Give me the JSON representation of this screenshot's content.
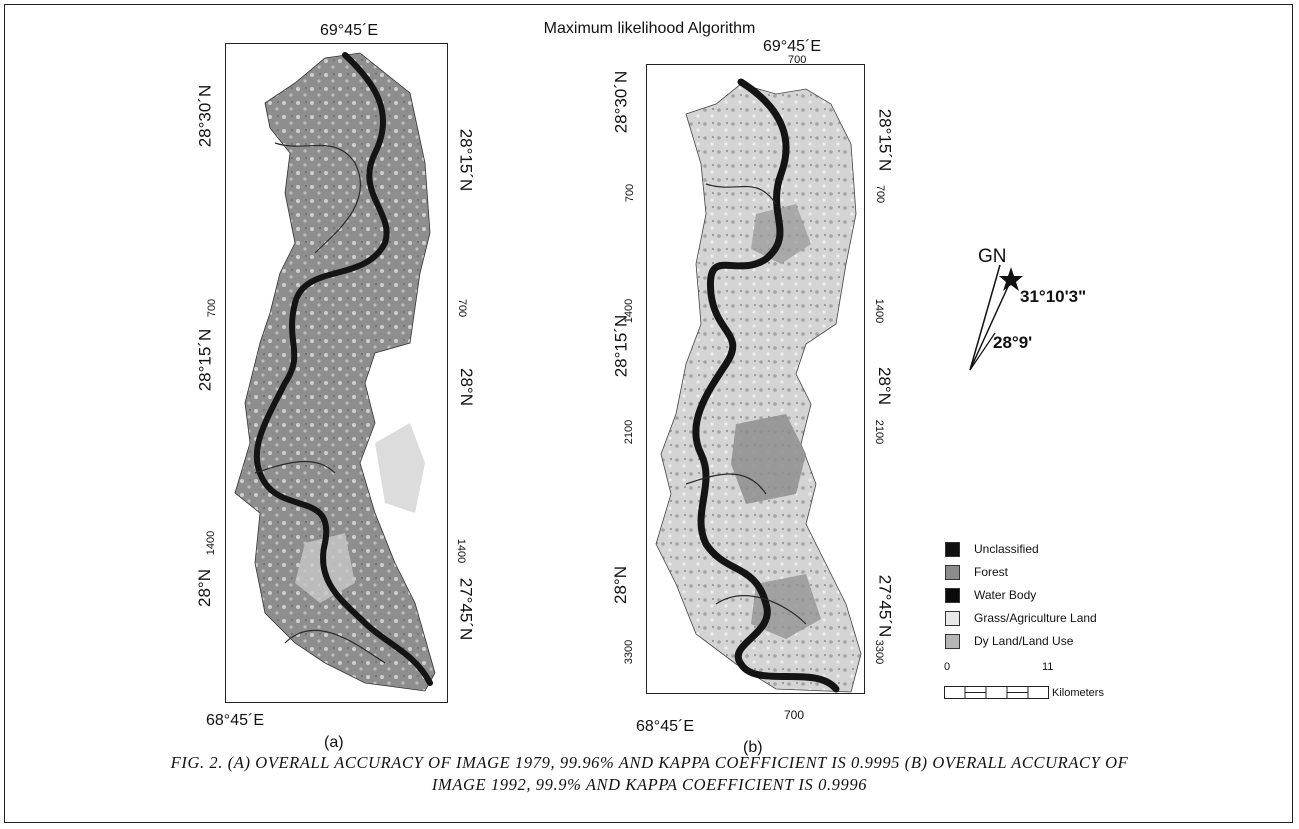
{
  "title": "Maximum likelihood Algorithm",
  "panels": {
    "a": {
      "label": "(a)",
      "top_longitude": "69°45´E",
      "bottom_longitude": "68°45´E",
      "left_lat_top": "28°30´N",
      "left_lat_mid": "28°15´N",
      "left_lat_bottom": "28°N",
      "left_ticks": [
        "700",
        "1400"
      ],
      "right_lat_top": "28°15´N",
      "right_lat_mid": "28°N",
      "right_lat_bottom": "27°45´N",
      "right_ticks": [
        "700",
        "1400"
      ]
    },
    "b": {
      "label": "(b)",
      "top_longitude": "69°45´E",
      "top_tick": "700",
      "bottom_longitude": "68°45´E",
      "bottom_tick": "700",
      "left_lat_top": "28°30´N",
      "left_lat_mid": "28°15´N",
      "left_lat_bottom": "28°N",
      "left_ticks": [
        "700",
        "1400",
        "2100",
        "3300"
      ],
      "right_lat_top": "28°15´N",
      "right_lat_mid": "28°N",
      "right_lat_bottom": "27°45´N",
      "right_ticks": [
        "700",
        "1400",
        "2100",
        "3300"
      ]
    }
  },
  "north_arrow": {
    "label": "GN",
    "angle_1": "31°10'3\"",
    "angle_2": "28°9'"
  },
  "legend": {
    "items": [
      {
        "label": "Unclassified",
        "color": "#111111"
      },
      {
        "label": "Forest",
        "color": "#8c8c8c"
      },
      {
        "label": "Water Body",
        "color": "#0a0a0a"
      },
      {
        "label": "Grass/Agriculture Land",
        "color": "#e8e8e8"
      },
      {
        "label": "Dy Land/Land Use",
        "color": "#b5b5b5"
      }
    ]
  },
  "scale_bar": {
    "start": "0",
    "end": "11",
    "unit": "Kilometers"
  },
  "caption": {
    "line1": "Fig. 2. (A) Overall accuracy of image 1979, 99.96% and kappa coefficient is 0.9995 (B) Overall accuracy of",
    "line2": "image 1992, 99.9% and kappa coefficient is 0.9996"
  },
  "colors": {
    "land_a": "#8e8e8e",
    "land_b": "#d2d2d2",
    "river": "#141414"
  }
}
